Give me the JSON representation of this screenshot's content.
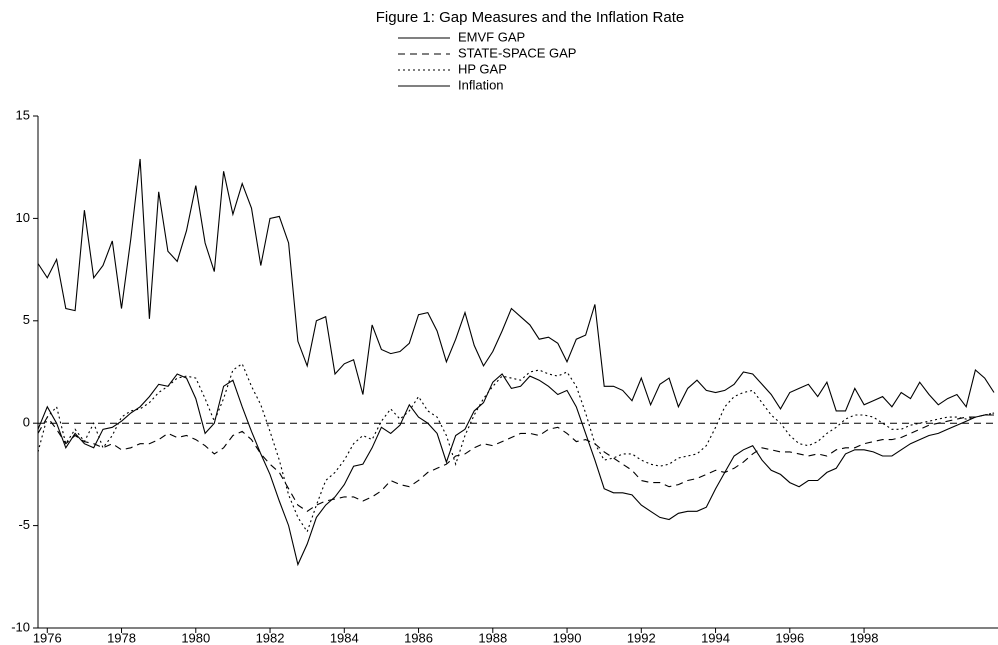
{
  "chart_data": {
    "type": "line",
    "title": "Figure 1: Gap Measures and the Inflation Rate",
    "x": [
      1975.75,
      1976,
      1976.25,
      1976.5,
      1976.75,
      1977,
      1977.25,
      1977.5,
      1977.75,
      1978,
      1978.25,
      1978.5,
      1978.75,
      1979,
      1979.25,
      1979.5,
      1979.75,
      1980,
      1980.25,
      1980.5,
      1980.75,
      1981,
      1981.25,
      1981.5,
      1981.75,
      1982,
      1982.25,
      1982.5,
      1982.75,
      1983,
      1983.25,
      1983.5,
      1983.75,
      1984,
      1984.25,
      1984.5,
      1984.75,
      1985,
      1985.25,
      1985.5,
      1985.75,
      1986,
      1986.25,
      1986.5,
      1986.75,
      1987,
      1987.25,
      1987.5,
      1987.75,
      1988,
      1988.25,
      1988.5,
      1988.75,
      1989,
      1989.25,
      1989.5,
      1989.75,
      1990,
      1990.25,
      1990.5,
      1990.75,
      1991,
      1991.25,
      1991.5,
      1991.75,
      1992,
      1992.25,
      1992.5,
      1992.75,
      1993,
      1993.25,
      1993.5,
      1993.75,
      1994,
      1994.25,
      1994.5,
      1994.75,
      1995,
      1995.25,
      1995.5,
      1995.75,
      1996,
      1996.25,
      1996.5,
      1996.75,
      1997,
      1997.25,
      1997.5,
      1997.75,
      1998,
      1998.25,
      1998.5,
      1998.75,
      1999,
      1999.25,
      1999.5,
      1999.75,
      2000,
      2000.25,
      2000.5,
      2000.75,
      2001,
      2001.25,
      2001.5
    ],
    "series": [
      {
        "name": "EMVF GAP",
        "color": "#000000",
        "dash": "solid",
        "values": [
          -0.3,
          0.8,
          0.0,
          -1.2,
          -0.5,
          -1.0,
          -1.2,
          -0.3,
          -0.2,
          0.1,
          0.5,
          0.8,
          1.3,
          1.9,
          1.8,
          2.4,
          2.2,
          1.2,
          -0.5,
          0.0,
          1.8,
          2.1,
          0.8,
          -0.4,
          -1.5,
          -2.5,
          -3.8,
          -5.0,
          -6.9,
          -5.9,
          -4.6,
          -4.0,
          -3.6,
          -3.0,
          -2.1,
          -2.0,
          -1.2,
          -0.2,
          -0.5,
          -0.1,
          0.9,
          0.3,
          0.0,
          -0.5,
          -1.9,
          -0.6,
          -0.3,
          0.6,
          1.0,
          2.0,
          2.4,
          1.7,
          1.8,
          2.3,
          2.1,
          1.8,
          1.4,
          1.6,
          0.8,
          -0.5,
          -1.8,
          -3.2,
          -3.4,
          -3.4,
          -3.5,
          -4.0,
          -4.3,
          -4.6,
          -4.7,
          -4.4,
          -4.3,
          -4.3,
          -4.1,
          -3.2,
          -2.4,
          -1.6,
          -1.3,
          -1.1,
          -1.8,
          -2.3,
          -2.5,
          -2.9,
          -3.1,
          -2.8,
          -2.8,
          -2.4,
          -2.2,
          -1.5,
          -1.3,
          -1.3,
          -1.4,
          -1.6,
          -1.6,
          -1.3,
          -1.0,
          -0.8,
          -0.6,
          -0.5,
          -0.3,
          -0.1,
          0.1,
          0.3,
          0.4,
          0.4
        ]
      },
      {
        "name": "STATE-SPACE GAP",
        "color": "#000000",
        "dash": "dashed",
        "values": [
          -0.5,
          0.3,
          -0.3,
          -1.0,
          -0.6,
          -0.9,
          -1.0,
          -1.2,
          -1.0,
          -1.3,
          -1.2,
          -1.0,
          -1.0,
          -0.8,
          -0.5,
          -0.7,
          -0.6,
          -0.8,
          -1.1,
          -1.5,
          -1.2,
          -0.6,
          -0.4,
          -0.8,
          -1.5,
          -2.0,
          -2.4,
          -3.2,
          -4.0,
          -4.3,
          -4.0,
          -3.8,
          -3.7,
          -3.6,
          -3.6,
          -3.8,
          -3.6,
          -3.3,
          -2.8,
          -3.0,
          -3.1,
          -2.8,
          -2.4,
          -2.2,
          -2.0,
          -1.6,
          -1.5,
          -1.2,
          -1.0,
          -1.1,
          -0.9,
          -0.7,
          -0.5,
          -0.5,
          -0.6,
          -0.3,
          -0.2,
          -0.5,
          -0.9,
          -0.8,
          -1.0,
          -1.4,
          -1.7,
          -2.0,
          -2.3,
          -2.8,
          -2.9,
          -2.9,
          -3.1,
          -3.0,
          -2.8,
          -2.7,
          -2.5,
          -2.3,
          -2.4,
          -2.2,
          -1.9,
          -1.5,
          -1.2,
          -1.3,
          -1.4,
          -1.4,
          -1.5,
          -1.6,
          -1.5,
          -1.6,
          -1.3,
          -1.2,
          -1.2,
          -1.0,
          -0.9,
          -0.8,
          -0.8,
          -0.7,
          -0.5,
          -0.3,
          -0.1,
          0.0,
          0.1,
          0.2,
          0.3,
          0.3,
          0.4,
          0.5
        ]
      },
      {
        "name": "HP GAP",
        "color": "#000000",
        "dash": "dotted",
        "values": [
          -1.4,
          0.3,
          0.8,
          -1.0,
          -0.3,
          -0.9,
          0.0,
          -1.2,
          -0.6,
          0.3,
          0.6,
          0.7,
          1.0,
          1.5,
          1.8,
          2.2,
          2.3,
          2.2,
          1.2,
          0.1,
          1.2,
          2.6,
          2.9,
          1.8,
          0.9,
          -0.4,
          -1.8,
          -3.5,
          -4.6,
          -5.3,
          -4.0,
          -2.8,
          -2.4,
          -1.8,
          -1.0,
          -0.6,
          -0.8,
          0.1,
          0.7,
          0.2,
          0.6,
          1.3,
          0.6,
          0.3,
          -0.6,
          -2.0,
          -0.6,
          0.4,
          1.2,
          1.8,
          2.3,
          2.2,
          2.1,
          2.5,
          2.6,
          2.4,
          2.3,
          2.5,
          1.8,
          0.5,
          -1.0,
          -1.8,
          -1.7,
          -1.5,
          -1.5,
          -1.8,
          -2.0,
          -2.1,
          -2.0,
          -1.7,
          -1.6,
          -1.5,
          -1.1,
          -0.2,
          0.8,
          1.3,
          1.5,
          1.6,
          1.0,
          0.4,
          0.0,
          -0.6,
          -1.0,
          -1.1,
          -0.9,
          -0.5,
          -0.2,
          0.2,
          0.4,
          0.4,
          0.3,
          0.0,
          -0.3,
          -0.3,
          -0.1,
          0.0,
          0.1,
          0.2,
          0.3,
          0.3,
          0.2,
          0.3,
          0.4,
          0.5
        ]
      },
      {
        "name": "Inflation",
        "color": "#000000",
        "dash": "solid",
        "values": [
          7.8,
          7.1,
          8.0,
          5.6,
          5.5,
          10.4,
          7.1,
          7.7,
          8.9,
          5.6,
          9.0,
          12.9,
          5.1,
          11.3,
          8.4,
          7.9,
          9.4,
          11.6,
          8.8,
          7.4,
          12.3,
          10.2,
          11.7,
          10.5,
          7.7,
          10.0,
          10.1,
          8.8,
          4.0,
          2.8,
          5.0,
          5.2,
          2.4,
          2.9,
          3.1,
          1.4,
          4.8,
          3.6,
          3.4,
          3.5,
          3.9,
          5.3,
          5.4,
          4.5,
          3.0,
          4.1,
          5.4,
          3.8,
          2.8,
          3.5,
          4.5,
          5.6,
          5.2,
          4.8,
          4.1,
          4.2,
          3.9,
          3.0,
          4.1,
          4.3,
          5.8,
          1.8,
          1.8,
          1.6,
          1.1,
          2.2,
          0.9,
          1.9,
          2.2,
          0.8,
          1.7,
          2.1,
          1.6,
          1.5,
          1.6,
          1.9,
          2.5,
          2.4,
          1.9,
          1.4,
          0.7,
          1.5,
          1.7,
          1.9,
          1.3,
          2.0,
          0.6,
          0.6,
          1.7,
          0.9,
          1.1,
          1.3,
          0.8,
          1.5,
          1.2,
          2.0,
          1.4,
          0.9,
          1.2,
          1.4,
          0.8,
          2.6,
          2.2,
          1.5
        ]
      }
    ],
    "xlim": [
      1975.75,
      2001.5
    ],
    "xticks": [
      1976,
      1978,
      1980,
      1982,
      1984,
      1986,
      1988,
      1990,
      1992,
      1994,
      1996,
      1998
    ],
    "ylim": [
      -10,
      15
    ],
    "yticks": [
      -10,
      -5,
      0,
      5,
      10,
      15
    ],
    "reference_line": 0,
    "legend": "top"
  }
}
